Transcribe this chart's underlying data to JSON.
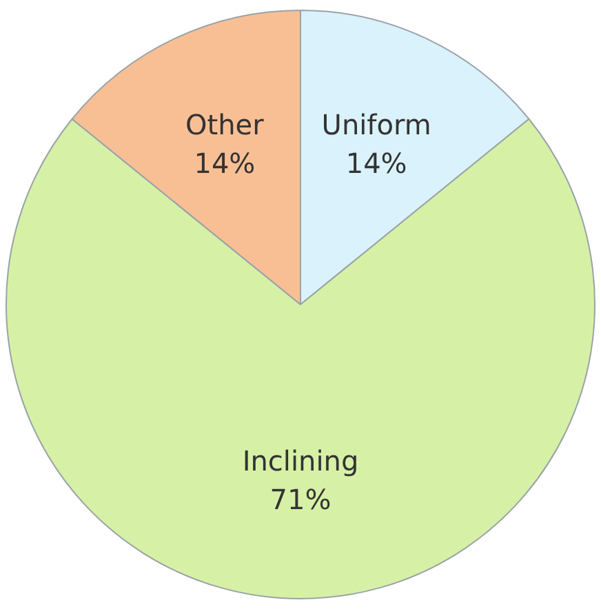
{
  "chart_data": {
    "type": "pie",
    "categories": [
      "Uniform",
      "Inclining",
      "Other"
    ],
    "values": [
      14,
      71,
      14
    ],
    "colors": [
      "#daf2fb",
      "#d6f1a6",
      "#f8bf95"
    ],
    "value_labels": [
      "14%",
      "71%",
      "14%"
    ],
    "legend": false
  }
}
